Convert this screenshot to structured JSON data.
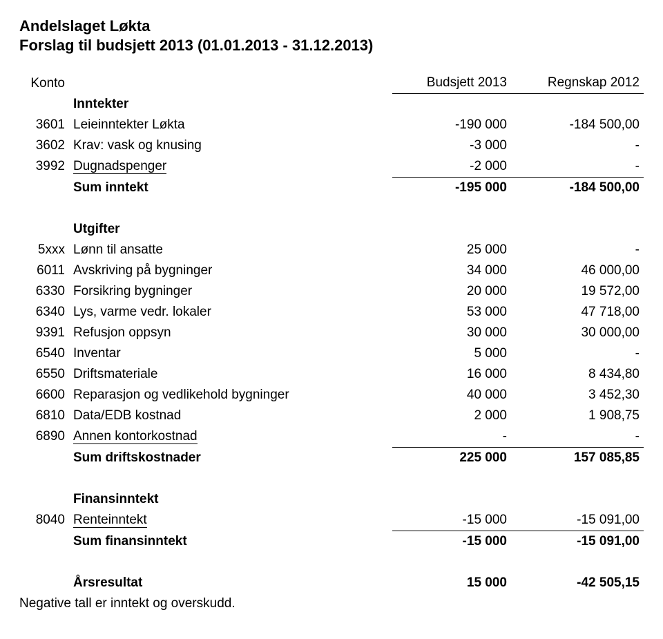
{
  "title_line1": "Andelslaget Løkta",
  "title_line2": "Forslag til budsjett 2013 (01.01.2013 - 31.12.2013)",
  "header": {
    "konto": "Konto",
    "budsjett": "Budsjett 2013",
    "regnskap": "Regnskap 2012"
  },
  "sections": {
    "inntekter": {
      "label": "Inntekter",
      "rows": [
        {
          "code": "3601",
          "label": "Leieinntekter Løkta",
          "budsjett": "-190 000",
          "regnskap": "-184 500,00"
        },
        {
          "code": "3602",
          "label": "Krav: vask og knusing",
          "budsjett": "-3 000",
          "regnskap": "-"
        },
        {
          "code": "3992",
          "label": "Dugnadspenger",
          "budsjett": "-2 000",
          "regnskap": "-"
        }
      ],
      "sum": {
        "label": "Sum inntekt",
        "budsjett": "-195 000",
        "regnskap": "-184 500,00"
      }
    },
    "utgifter": {
      "label": "Utgifter",
      "rows": [
        {
          "code": "5xxx",
          "label": "Lønn til ansatte",
          "budsjett": "25 000",
          "regnskap": "-"
        },
        {
          "code": "6011",
          "label": "Avskriving på bygninger",
          "budsjett": "34 000",
          "regnskap": "46 000,00"
        },
        {
          "code": "6330",
          "label": "Forsikring bygninger",
          "budsjett": "20 000",
          "regnskap": "19 572,00"
        },
        {
          "code": "6340",
          "label": "Lys, varme vedr. lokaler",
          "budsjett": "53 000",
          "regnskap": "47 718,00"
        },
        {
          "code": "9391",
          "label": "Refusjon oppsyn",
          "budsjett": "30 000",
          "regnskap": "30 000,00"
        },
        {
          "code": "6540",
          "label": "Inventar",
          "budsjett": "5 000",
          "regnskap": "-"
        },
        {
          "code": "6550",
          "label": "Driftsmateriale",
          "budsjett": "16 000",
          "regnskap": "8 434,80"
        },
        {
          "code": "6600",
          "label": "Reparasjon og vedlikehold bygninger",
          "budsjett": "40 000",
          "regnskap": "3 452,30"
        },
        {
          "code": "6810",
          "label": "Data/EDB kostnad",
          "budsjett": "2 000",
          "regnskap": "1 908,75"
        },
        {
          "code": "6890",
          "label": "Annen kontorkostnad",
          "budsjett": "-",
          "regnskap": "-"
        }
      ],
      "sum": {
        "label": "Sum driftskostnader",
        "budsjett": "225 000",
        "regnskap": "157 085,85"
      }
    },
    "finansinntekt": {
      "label": "Finansinntekt",
      "rows": [
        {
          "code": "8040",
          "label": "Renteinntekt",
          "budsjett": "-15 000",
          "regnskap": "-15 091,00"
        }
      ],
      "sum": {
        "label": "Sum finansinntekt",
        "budsjett": "-15 000",
        "regnskap": "-15 091,00"
      }
    },
    "resultat": {
      "label": "Årsresultat",
      "budsjett": "15 000",
      "regnskap": "-42 505,15"
    }
  },
  "footnote": "Negative tall er inntekt og overskudd."
}
